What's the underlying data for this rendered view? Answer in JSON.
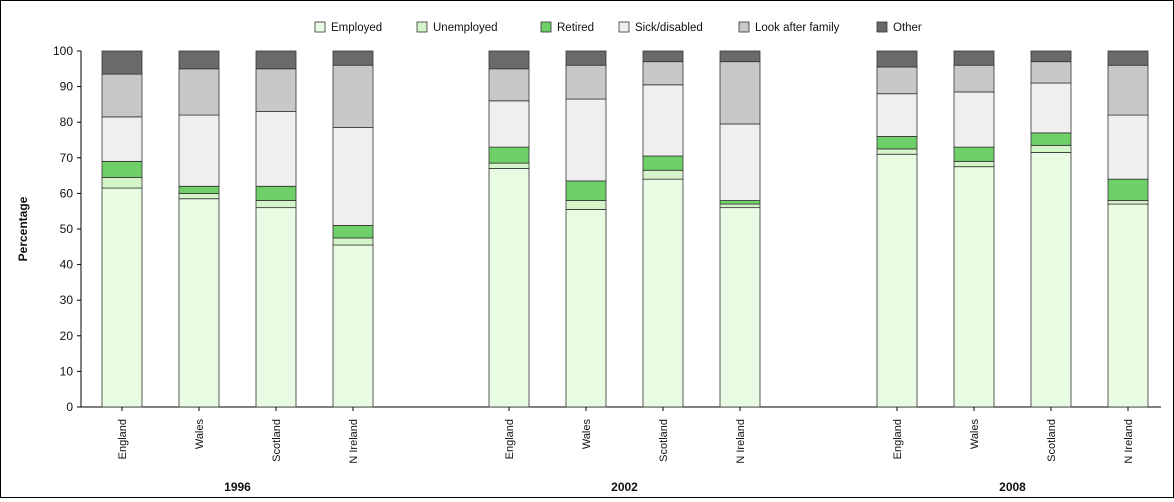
{
  "chart_data": {
    "type": "bar",
    "stacked": true,
    "ylabel": "Percentage",
    "ylim": [
      0,
      100
    ],
    "yticks": [
      0,
      10,
      20,
      30,
      40,
      50,
      60,
      70,
      80,
      90,
      100
    ],
    "legend": {
      "position": "top"
    },
    "series": [
      {
        "name": "Employed",
        "color": "#e8fbe3"
      },
      {
        "name": "Unemployed",
        "color": "#d6f4c9"
      },
      {
        "name": "Retired",
        "color": "#6fcf68"
      },
      {
        "name": "Sick/disabled",
        "color": "#efefef"
      },
      {
        "name": "Look after family",
        "color": "#c8c8c8"
      },
      {
        "name": "Other",
        "color": "#6a6a6a"
      }
    ],
    "groups": [
      {
        "label": "1996",
        "bars": [
          {
            "category": "England",
            "values": [
              61.5,
              3,
              4.5,
              12.5,
              12,
              6.5
            ]
          },
          {
            "category": "Wales",
            "values": [
              58.5,
              1.5,
              2,
              20,
              13,
              5
            ]
          },
          {
            "category": "Scotland",
            "values": [
              56,
              2,
              4,
              21,
              12,
              5
            ]
          },
          {
            "category": "N Ireland",
            "values": [
              45.5,
              2,
              3.5,
              27.5,
              17.5,
              4
            ]
          }
        ]
      },
      {
        "label": "2002",
        "bars": [
          {
            "category": "England",
            "values": [
              67,
              1.5,
              4.5,
              13,
              9,
              5
            ]
          },
          {
            "category": "Wales",
            "values": [
              55.5,
              2.5,
              5.5,
              23,
              9.5,
              4
            ]
          },
          {
            "category": "Scotland",
            "values": [
              64,
              2.5,
              4,
              20,
              6.5,
              3
            ]
          },
          {
            "category": "N Ireland",
            "values": [
              56,
              1,
              1,
              21.5,
              17.5,
              3
            ]
          }
        ]
      },
      {
        "label": "2008",
        "bars": [
          {
            "category": "England",
            "values": [
              71,
              1.5,
              3.5,
              12,
              7.5,
              4.5
            ]
          },
          {
            "category": "Wales",
            "values": [
              67.5,
              1.5,
              4,
              15.5,
              7.5,
              4
            ]
          },
          {
            "category": "Scotland",
            "values": [
              71.5,
              2,
              3.5,
              14,
              6,
              3
            ]
          },
          {
            "category": "N Ireland",
            "values": [
              57,
              1,
              6,
              18,
              14,
              4
            ]
          }
        ]
      }
    ]
  }
}
